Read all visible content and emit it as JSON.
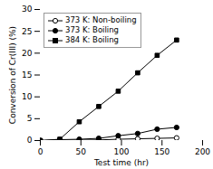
{
  "chart_data": {
    "type": "line",
    "xlabel": "Test time (hr)",
    "ylabel": "Conversion of Cr(III) (%)",
    "x": [
      0,
      24,
      48,
      72,
      96,
      120,
      144,
      168
    ],
    "series": [
      {
        "name": "373 K: Non-boiling",
        "color": "black",
        "marker": "circle-open",
        "values": [
          0,
          0.05,
          0.1,
          0.15,
          0.3,
          0.4,
          0.5,
          0.6
        ]
      },
      {
        "name": "373 K: Boiling",
        "color": "black",
        "marker": "circle",
        "values": [
          0,
          0.2,
          0.3,
          0.5,
          1.1,
          1.6,
          2.6,
          3.0
        ]
      },
      {
        "name": "384 K: Boiling",
        "color": "black",
        "marker": "square",
        "values": [
          0,
          0.3,
          4.3,
          7.8,
          11.3,
          15.5,
          19.5,
          23.0
        ]
      }
    ],
    "xlim": [
      0,
      200
    ],
    "ylim": [
      0,
      30
    ],
    "xticks": [
      0,
      50,
      100,
      150,
      200
    ],
    "yticks": [
      0,
      5,
      10,
      15,
      20,
      25,
      30
    ],
    "legend": "upper left",
    "grid": false
  }
}
